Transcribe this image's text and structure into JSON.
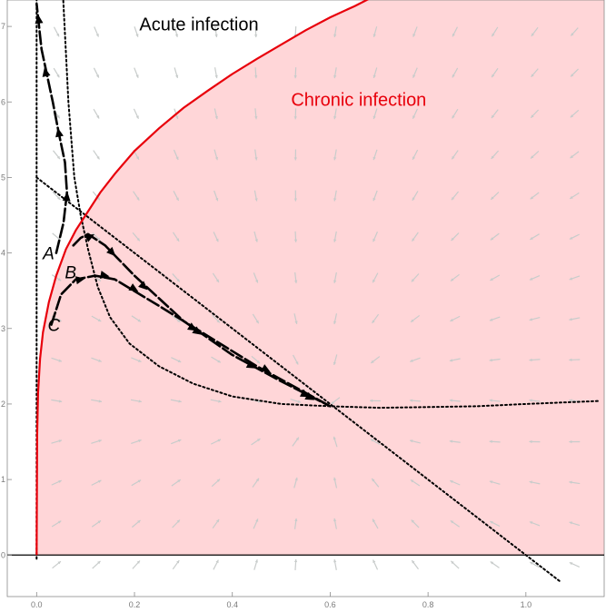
{
  "chart_data": {
    "type": "line",
    "title": "",
    "xlabel": "",
    "ylabel": "",
    "xlim": [
      -0.06,
      1.16
    ],
    "ylim": [
      -0.55,
      7.35
    ],
    "x_ticks": [
      0.0,
      0.2,
      0.4,
      0.6,
      0.8,
      1.0
    ],
    "x_tick_labels": [
      "0.0",
      "0.2",
      "0.4",
      "0.6",
      "0.8",
      "1.0"
    ],
    "y_ticks": [
      0,
      1,
      2,
      3,
      4,
      5,
      6,
      7
    ],
    "y_tick_labels": [
      "0",
      "1",
      "2",
      "3",
      "4",
      "5",
      "6",
      "7"
    ],
    "grid": false,
    "vector_field": true,
    "colors": {
      "boundary": "#e8000b",
      "chronic_fill": "#ffd6d8",
      "region_label_acute": "#000000",
      "region_label_chronic": "#e8000b",
      "vector_arrows": "#c8cccb",
      "nullclines": "#000000",
      "trajectories": "#000000"
    },
    "region_labels": [
      {
        "text": "Acute infection",
        "x": 0.21,
        "y": 6.95,
        "color_key": "region_label_acute"
      },
      {
        "text": "Chronic infection",
        "x": 0.52,
        "y": 5.95,
        "color_key": "region_label_chronic"
      }
    ],
    "boundary_curve": {
      "points": [
        [
          0.0,
          0.0
        ],
        [
          0.001,
          1.6
        ],
        [
          0.003,
          2.15
        ],
        [
          0.007,
          2.6
        ],
        [
          0.013,
          2.95
        ],
        [
          0.025,
          3.35
        ],
        [
          0.04,
          3.7
        ],
        [
          0.06,
          4.05
        ],
        [
          0.08,
          4.3
        ],
        [
          0.1,
          4.5
        ],
        [
          0.13,
          4.8
        ],
        [
          0.16,
          5.05
        ],
        [
          0.2,
          5.35
        ],
        [
          0.25,
          5.65
        ],
        [
          0.3,
          5.92
        ],
        [
          0.35,
          6.15
        ],
        [
          0.4,
          6.37
        ],
        [
          0.45,
          6.57
        ],
        [
          0.5,
          6.76
        ],
        [
          0.55,
          6.95
        ],
        [
          0.6,
          7.12
        ],
        [
          0.65,
          7.27
        ],
        [
          0.69,
          7.4
        ]
      ]
    },
    "dotted_lines": [
      {
        "points": [
          [
            0.0,
            -0.05
          ],
          [
            0.0,
            7.4
          ]
        ]
      },
      {
        "points": [
          [
            0.0,
            5.0
          ],
          [
            1.07,
            -0.35
          ]
        ]
      },
      {
        "points": [
          [
            0.054,
            7.4
          ],
          [
            0.065,
            6.0
          ],
          [
            0.077,
            5.0
          ],
          [
            0.09,
            4.5
          ],
          [
            0.105,
            4.05
          ],
          [
            0.125,
            3.55
          ],
          [
            0.15,
            3.15
          ],
          [
            0.19,
            2.8
          ],
          [
            0.25,
            2.5
          ],
          [
            0.32,
            2.27
          ],
          [
            0.4,
            2.1
          ],
          [
            0.5,
            2.0
          ],
          [
            0.6,
            1.97
          ],
          [
            0.7,
            1.95
          ],
          [
            0.8,
            1.96
          ],
          [
            0.9,
            1.97
          ],
          [
            1.0,
            2.0
          ],
          [
            1.15,
            2.04
          ]
        ]
      }
    ],
    "trajectories": [
      {
        "label": "A",
        "label_pos": [
          0.02,
          4.0
        ],
        "points": [
          [
            0.04,
            4.0
          ],
          [
            0.055,
            4.4
          ],
          [
            0.062,
            4.8
          ],
          [
            0.058,
            5.2
          ],
          [
            0.045,
            5.6
          ],
          [
            0.033,
            6.0
          ],
          [
            0.01,
            6.7
          ],
          [
            0.0,
            7.3
          ]
        ],
        "arrows": [
          [
            0.062,
            4.75
          ],
          [
            0.045,
            5.6
          ],
          [
            0.018,
            6.4
          ],
          [
            0.004,
            7.1
          ]
        ]
      },
      {
        "label": "B",
        "label_pos": [
          0.065,
          3.75
        ],
        "points": [
          [
            0.075,
            4.1
          ],
          [
            0.09,
            4.2
          ],
          [
            0.105,
            4.25
          ],
          [
            0.14,
            4.1
          ],
          [
            0.2,
            3.7
          ],
          [
            0.3,
            3.1
          ],
          [
            0.4,
            2.65
          ],
          [
            0.5,
            2.3
          ],
          [
            0.6,
            1.97
          ]
        ],
        "arrows": [
          [
            0.11,
            4.22
          ],
          [
            0.155,
            4.0
          ],
          [
            0.22,
            3.55
          ],
          [
            0.33,
            2.95
          ],
          [
            0.44,
            2.5
          ],
          [
            0.55,
            2.12
          ]
        ]
      },
      {
        "label": "C",
        "label_pos": [
          0.03,
          3.05
        ],
        "points": [
          [
            0.03,
            3.05
          ],
          [
            0.05,
            3.45
          ],
          [
            0.08,
            3.65
          ],
          [
            0.12,
            3.7
          ],
          [
            0.16,
            3.65
          ],
          [
            0.25,
            3.3
          ],
          [
            0.35,
            2.9
          ],
          [
            0.45,
            2.5
          ],
          [
            0.6,
            1.97
          ]
        ],
        "arrows": [
          [
            0.09,
            3.65
          ],
          [
            0.14,
            3.7
          ],
          [
            0.2,
            3.52
          ],
          [
            0.32,
            3.0
          ],
          [
            0.47,
            2.45
          ],
          [
            0.56,
            2.08
          ]
        ]
      }
    ],
    "vector_field_params": {
      "fixed_point": [
        0.6,
        1.97
      ],
      "x_range": [
        0.0,
        1.14
      ],
      "y_range": [
        -0.4,
        7.2
      ],
      "nx": 14,
      "ny": 14
    }
  }
}
